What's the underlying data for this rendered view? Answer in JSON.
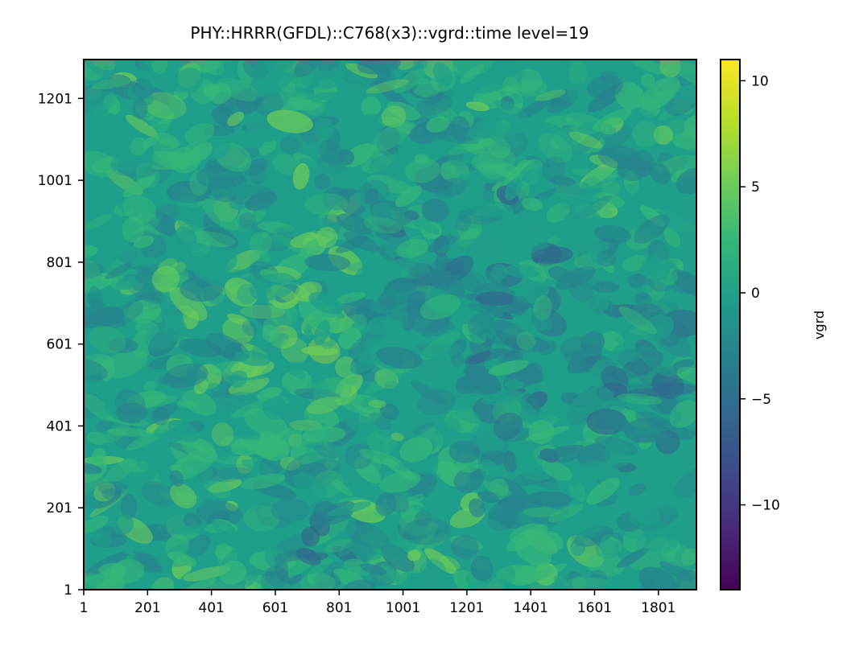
{
  "chart_data": {
    "type": "heatmap",
    "title": "PHY::HRRR(GFDL)::C768(x3)::vgrd::time level=19",
    "xlabel": "",
    "ylabel": "",
    "x_ticks": [
      "1",
      "201",
      "401",
      "601",
      "801",
      "1001",
      "1201",
      "1401",
      "1601",
      "1801"
    ],
    "y_ticks": [
      "1",
      "201",
      "401",
      "601",
      "801",
      "1001",
      "1201"
    ],
    "xlim": [
      1,
      1920
    ],
    "ylim": [
      1,
      1296
    ],
    "grid": false,
    "colormap": "viridis",
    "colorbar": {
      "label": "vgrd",
      "ticks": [
        "10",
        "5",
        "0",
        "−5",
        "−10"
      ],
      "range": [
        -14,
        11
      ]
    },
    "colors": {
      "viridis": [
        "#440154",
        "#482878",
        "#3e4989",
        "#31688e",
        "#26828e",
        "#1f9e89",
        "#35b779",
        "#6ece58",
        "#b5de2b",
        "#fde725"
      ]
    }
  }
}
